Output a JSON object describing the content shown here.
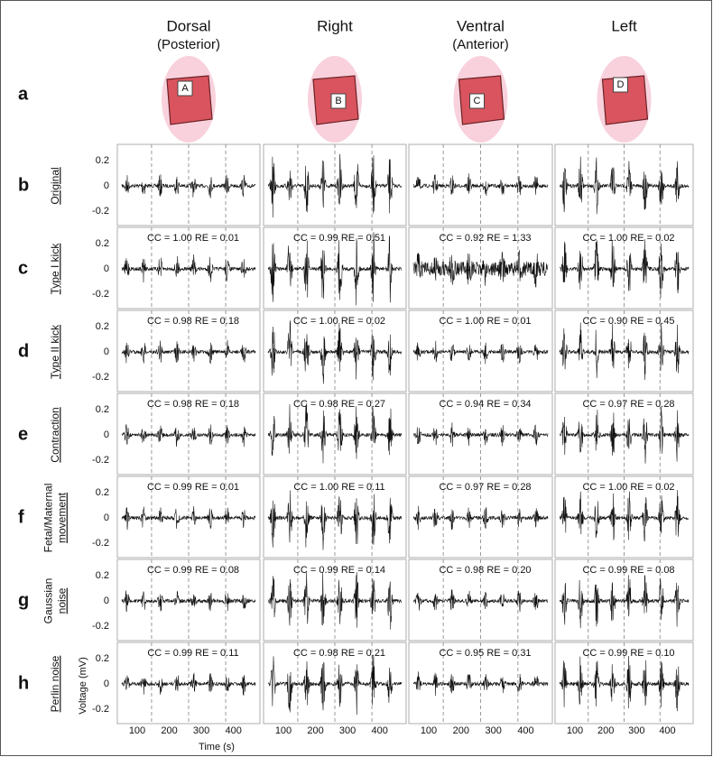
{
  "columns": [
    {
      "title": "Dorsal",
      "subtitle": "(Posterior)",
      "marker": "A"
    },
    {
      "title": "Right",
      "marker": "B"
    },
    {
      "title": "Ventral",
      "subtitle": "(Anterior)",
      "marker": "C"
    },
    {
      "title": "Left",
      "marker": "D"
    }
  ],
  "top_row_letter": "a",
  "rows": [
    {
      "letter": "b",
      "label": [
        "Original"
      ],
      "underlined": [
        true
      ],
      "annotations": []
    },
    {
      "letter": "c",
      "label": [
        "Type I kick"
      ],
      "underlined": [
        true
      ],
      "annotations": [
        "CC = 1.00    RE = 0.01",
        "CC = 0.99  RE = 0.51",
        "CC = 0.92  RE = 1.33",
        "CC = 1.00    RE = 0.02"
      ]
    },
    {
      "letter": "d",
      "label": [
        "Type II kick"
      ],
      "underlined": [
        true
      ],
      "annotations": [
        "CC = 0.98  RE = 0.18",
        "CC = 1.00  RE = 0.02",
        "CC = 1.00  RE = 0.01",
        "CC = 0.90  RE = 0.45"
      ]
    },
    {
      "letter": "e",
      "label": [
        "Contraction"
      ],
      "underlined": [
        true
      ],
      "annotations": [
        "CC = 0.98  RE = 0.18",
        "CC = 0.98  RE = 0.27",
        "CC = 0.94  RE = 0.34",
        "CC = 0.97  RE = 0.28"
      ]
    },
    {
      "letter": "f",
      "label": [
        "Fetal/Maternal",
        "movement"
      ],
      "underlined": [
        false,
        true
      ],
      "annotations": [
        "CC = 0.99  RE = 0.01",
        "CC = 1.00  RE = 0.11",
        "CC = 0.97  RE = 0.28",
        "CC = 1.00  RE = 0.02"
      ]
    },
    {
      "letter": "g",
      "label": [
        "Gaussian",
        "noise"
      ],
      "underlined": [
        false,
        true
      ],
      "annotations": [
        "CC = 0.99  RE = 0.08",
        "CC = 0.99  RE = 0.14",
        "CC = 0.98  RE = 0.20",
        "CC = 0.99  RE = 0.08"
      ]
    },
    {
      "letter": "h",
      "label": [
        "Perlin noise"
      ],
      "underlined": [
        true
      ],
      "annotations": [
        "CC = 0.99  RE = 0.11",
        "CC = 0.98  RE = 0.21",
        "CC = 0.95  RE = 0.31",
        "CC = 0.99  RE = 0.10"
      ]
    }
  ],
  "yticks": [
    "0.2",
    "0",
    "-0.2"
  ],
  "xticks": [
    "100",
    "200",
    "300",
    "400"
  ],
  "ylabel": "Voltage (mV)",
  "xlabel": "Time (s)"
}
